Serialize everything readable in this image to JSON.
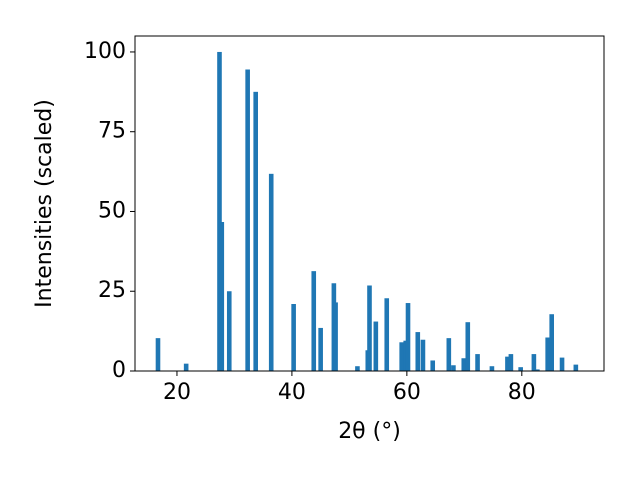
{
  "chart_data": {
    "type": "bar",
    "xlabel": "2θ (°)",
    "ylabel": "Intensities (scaled)",
    "x": [
      16.7,
      21.6,
      27.4,
      27.8,
      29.1,
      32.3,
      33.7,
      36.4,
      40.3,
      43.8,
      45.0,
      47.3,
      47.6,
      51.4,
      53.2,
      53.5,
      54.6,
      56.5,
      59.1,
      59.8,
      60.2,
      61.9,
      62.8,
      64.5,
      67.3,
      68.1,
      69.9,
      70.6,
      72.3,
      74.8,
      77.5,
      78.1,
      79.8,
      82.1,
      82.7,
      84.5,
      85.2,
      87.0,
      89.4
    ],
    "values": [
      10.3,
      2.3,
      100,
      46.7,
      25,
      94.5,
      87.5,
      61.8,
      21,
      31.3,
      13.5,
      27.5,
      21.5,
      1.5,
      6.5,
      26.8,
      15.5,
      22.8,
      9,
      9.5,
      21.3,
      12.2,
      9.8,
      3.3,
      10.3,
      1.8,
      4,
      15.3,
      5.3,
      1.5,
      4.5,
      5.3,
      1.2,
      5.3,
      0.5,
      10.5,
      17.8,
      4.2,
      2
    ],
    "color": "#1f77b4",
    "xlim": [
      12.7,
      94.3
    ],
    "ylim": [
      0,
      105
    ],
    "xticks": [
      20,
      40,
      60,
      80
    ],
    "yticks": [
      0,
      25,
      50,
      75,
      100
    ]
  }
}
